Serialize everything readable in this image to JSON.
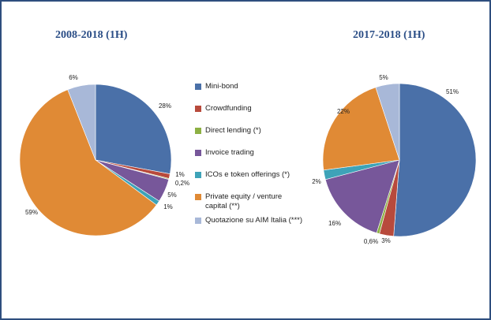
{
  "chart_data": [
    {
      "type": "pie",
      "title": "2008-2018 (1H)",
      "categories": [
        "Mini-bond",
        "Crowdfunding",
        "Direct lending (*)",
        "Invoice trading",
        "ICOs e token offerings (*)",
        "Private equity / venture capital (**)",
        "Quotazione su AIM Italia (***)"
      ],
      "values": [
        28,
        1,
        0.2,
        5,
        1,
        59,
        6
      ],
      "labels": [
        "28%",
        "1%",
        "0,2%",
        "5%",
        "1%",
        "59%",
        "6%"
      ]
    },
    {
      "type": "pie",
      "title": "2017-2018 (1H)",
      "categories": [
        "Mini-bond",
        "Crowdfunding",
        "Direct lending (*)",
        "Invoice trading",
        "ICOs e token offerings (*)",
        "Private equity / venture capital (**)",
        "Quotazione su AIM Italia (***)"
      ],
      "values": [
        51,
        3,
        0.6,
        16,
        2,
        22,
        5
      ],
      "labels": [
        "51%",
        "3%",
        "0,6%",
        "16%",
        "2%",
        "22%",
        "5%"
      ]
    }
  ],
  "legend": [
    {
      "label": "Mini-bond",
      "color": "#4a70a8"
    },
    {
      "label": "Crowdfunding",
      "color": "#b84a3c"
    },
    {
      "label": "Direct lending (*)",
      "color": "#8db043"
    },
    {
      "label": "Invoice trading",
      "color": "#77579a"
    },
    {
      "label": "ICOs e token offerings (*)",
      "color": "#3ea3b8"
    },
    {
      "label": "Private equity / venture capital (**)",
      "color": "#e08a35"
    },
    {
      "label": "Quotazione su AIM Italia (***)",
      "color": "#a8b8d8"
    }
  ]
}
